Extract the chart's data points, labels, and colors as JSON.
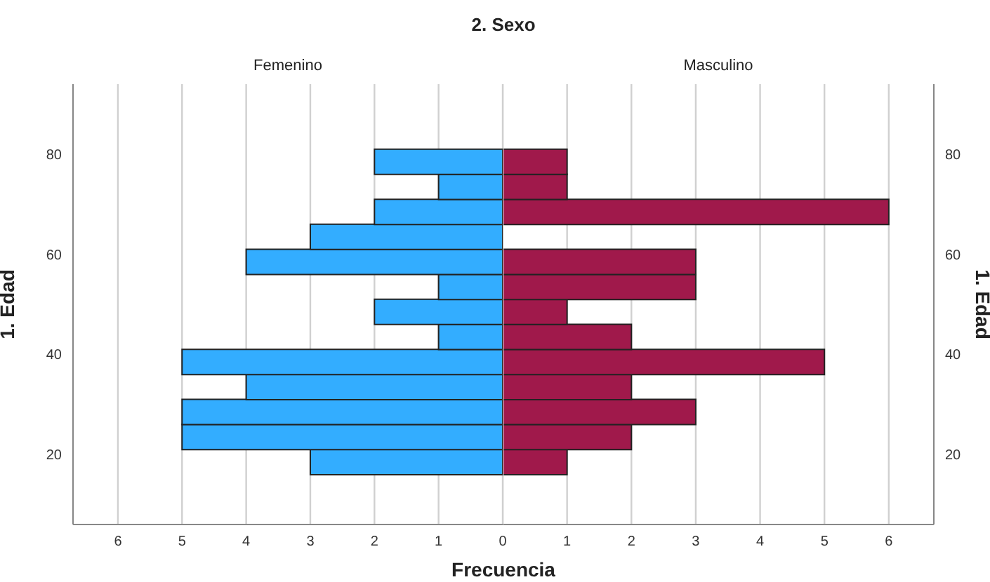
{
  "chart_data": [
    {
      "type": "histogram",
      "orientation": "horizontal",
      "title": "2. Sexo",
      "xlabel": "Frecuencia",
      "ylabel": "1. Edad",
      "bins": [
        16,
        21,
        26,
        31,
        36,
        41,
        46,
        51,
        56,
        61,
        66,
        71,
        76,
        81
      ],
      "series": [
        {
          "name": "Femenino",
          "color": "#33adff",
          "values": [
            3,
            5,
            5,
            4,
            5,
            1,
            2,
            1,
            4,
            3,
            2,
            1,
            2
          ]
        }
      ],
      "xlim": [
        6.7,
        0
      ],
      "xticks": [
        0,
        1,
        2,
        3,
        4,
        5,
        6
      ],
      "ylim": [
        6,
        94
      ],
      "yticks": [
        20,
        40,
        60,
        80
      ],
      "grid": "x",
      "legend": false
    },
    {
      "type": "histogram",
      "orientation": "horizontal",
      "ylabel": "1. Edad",
      "bins": [
        16,
        21,
        26,
        31,
        36,
        41,
        46,
        51,
        56,
        61,
        66,
        71,
        76,
        81
      ],
      "series": [
        {
          "name": "Masculino",
          "color": "#a0194b",
          "values": [
            1,
            2,
            3,
            2,
            5,
            2,
            1,
            3,
            3,
            0,
            6,
            1,
            1
          ]
        }
      ],
      "xlim": [
        0,
        6.7
      ],
      "xticks": [
        1,
        2,
        3,
        4,
        5,
        6
      ],
      "ylim": [
        6,
        94
      ],
      "yticks": [
        20,
        40,
        60,
        80
      ],
      "grid": "x",
      "legend": false
    }
  ]
}
